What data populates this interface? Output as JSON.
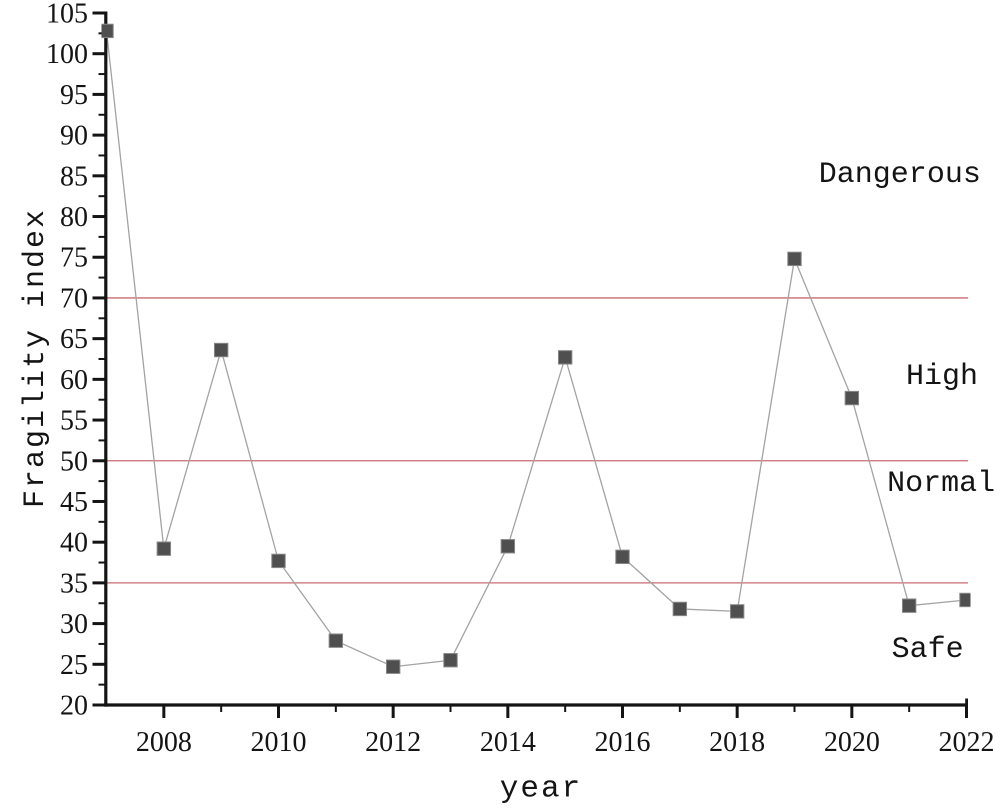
{
  "chart_data": {
    "type": "line",
    "title": "",
    "xlabel": "year",
    "ylabel": "Fragility index",
    "x": [
      2007,
      2008,
      2009,
      2010,
      2011,
      2012,
      2013,
      2014,
      2015,
      2016,
      2017,
      2018,
      2019,
      2020,
      2021,
      2022
    ],
    "series": [
      {
        "name": "Fragility index",
        "values": [
          102.8,
          39.2,
          63.6,
          37.7,
          27.9,
          24.7,
          25.5,
          39.5,
          62.7,
          38.2,
          31.8,
          31.5,
          74.8,
          57.7,
          32.2,
          32.9
        ]
      }
    ],
    "xlim": [
      2007,
      2022
    ],
    "ylim": [
      20,
      105
    ],
    "y_major_tick_step": 5,
    "y_minor_tick_step": 2.5,
    "x_major_ticks": [
      2008,
      2010,
      2012,
      2014,
      2016,
      2018,
      2020,
      2022
    ],
    "x_minor_ticks": [
      2009,
      2011,
      2013,
      2015,
      2017,
      2019,
      2021
    ],
    "grid": false,
    "legend_position": "none",
    "marker_shape": "square",
    "reference_lines": [
      {
        "value": 70
      },
      {
        "value": 50
      },
      {
        "value": 35
      }
    ],
    "annotations": [
      {
        "text": "Dangerous",
        "x": 2022.25,
        "y": 85.1
      },
      {
        "text": "High",
        "x": 2022.2,
        "y": 60.3
      },
      {
        "text": "Normal",
        "x": 2022.5,
        "y": 47.1
      },
      {
        "text": "Safe",
        "x": 2021.95,
        "y": 26.8
      }
    ],
    "colors": {
      "series_line": "#a3a3a3",
      "marker_fill": "#4f4f4f",
      "marker_edge": "#898989",
      "reference_line": "#c96b70",
      "axis": "#141414",
      "text": "#141414"
    }
  }
}
